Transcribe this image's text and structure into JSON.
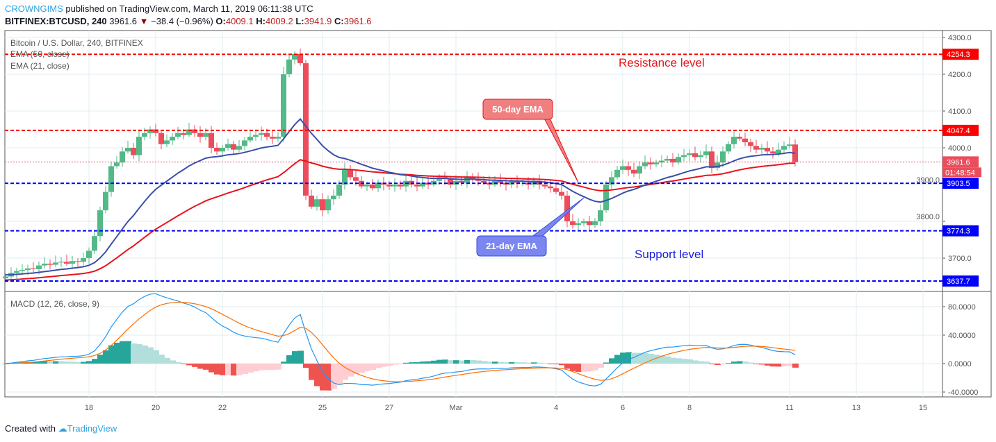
{
  "header": {
    "author": "CROWNGIMS",
    "published": "published on TradingView.com, March 11, 2019 06:11:38 UTC",
    "symbol": "BITFINEX:BTCUSD, 240",
    "last": "3961.6",
    "change": "−38.4 (−0.96%)",
    "o_label": "O:",
    "o": "4009.1",
    "h_label": "H:",
    "h": "4009.2",
    "l_label": "L:",
    "l": "3941.9",
    "c_label": "C:",
    "c": "3961.6"
  },
  "footer": {
    "created": "Created with",
    "brand": "TradingView"
  },
  "colors": {
    "up": "#53b987",
    "down": "#eb4d5c",
    "ema50": "#e8141b",
    "ema21": "#3a4fa8",
    "macd": "#2196f3",
    "signal": "#ff6d00",
    "resistance": "#ff0000",
    "support": "#0000ff"
  },
  "chart_data": {
    "type": "candlestick",
    "title": "Bitcoin / U.S. Dollar, 240, BITFINEX",
    "legend": [
      "EMA (50, close)",
      "EMA (21, close)"
    ],
    "macd_label": "MACD (12, 26, close, 9)",
    "y_ticks": [
      "4300.0",
      "4200.0",
      "4100.0",
      "4000.0",
      "3900.0",
      "3800.0",
      "3700.0"
    ],
    "y_tick_values": [
      4300,
      4200,
      4100,
      4000,
      3900,
      3800,
      3700
    ],
    "ylim": [
      3620,
      4320
    ],
    "macd_ticks": [
      "80.0000",
      "40.0000",
      "0.0000",
      "-40.0000"
    ],
    "macd_tick_values": [
      80,
      40,
      0,
      -40
    ],
    "macd_ylim": [
      -48,
      100
    ],
    "x_ticks": [
      {
        "label": "18",
        "day": 18
      },
      {
        "label": "20",
        "day": 20
      },
      {
        "label": "22",
        "day": 22
      },
      {
        "label": "25",
        "day": 25
      },
      {
        "label": "27",
        "day": 27
      },
      {
        "label": "Mar",
        "day": 29
      },
      {
        "label": "4",
        "day": 32
      },
      {
        "label": "6",
        "day": 34
      },
      {
        "label": "8",
        "day": 36
      },
      {
        "label": "11",
        "day": 39
      },
      {
        "label": "13",
        "day": 41
      },
      {
        "label": "15",
        "day": 43
      }
    ],
    "start_day": 15.5,
    "candles_per_day": 6,
    "closes": [
      3650,
      3660,
      3665,
      3668,
      3672,
      3670,
      3680,
      3685,
      3682,
      3688,
      3690,
      3685,
      3692,
      3690,
      3700,
      3720,
      3760,
      3830,
      3880,
      3950,
      3960,
      3990,
      4000,
      3980,
      4030,
      4040,
      4050,
      4040,
      4010,
      4020,
      4030,
      4040,
      4035,
      4050,
      4040,
      4030,
      4040,
      4000,
      3990,
      4000,
      4010,
      3995,
      4005,
      4020,
      4030,
      4035,
      4040,
      4030,
      4025,
      4030,
      4200,
      4240,
      4255,
      4230,
      3870,
      3840,
      3860,
      3830,
      3860,
      3870,
      3900,
      3940,
      3920,
      3910,
      3895,
      3900,
      3890,
      3905,
      3900,
      3895,
      3900,
      3895,
      3910,
      3900,
      3895,
      3905,
      3900,
      3910,
      3920,
      3915,
      3900,
      3910,
      3905,
      3920,
      3915,
      3910,
      3905,
      3900,
      3910,
      3905,
      3900,
      3910,
      3905,
      3905,
      3900,
      3910,
      3900,
      3895,
      3890,
      3880,
      3870,
      3800,
      3790,
      3795,
      3800,
      3790,
      3800,
      3830,
      3900,
      3920,
      3940,
      3950,
      3940,
      3930,
      3950,
      3960,
      3955,
      3960,
      3965,
      3970,
      3960,
      3975,
      3980,
      3985,
      3975,
      3980,
      3990,
      3945,
      3960,
      3990,
      4010,
      4030,
      4025,
      4015,
      4005,
      3995,
      4000,
      3990,
      3985,
      3995,
      4005,
      4009,
      3961.6
    ],
    "levels": [
      {
        "value": 4254.3,
        "label": "4254.3",
        "kind": "resistance"
      },
      {
        "value": 4047.4,
        "label": "4047.4",
        "kind": "resistance"
      },
      {
        "value": 3903.5,
        "label": "3903.5",
        "kind": "support"
      },
      {
        "value": 3774.3,
        "label": "3774.3",
        "kind": "support"
      },
      {
        "value": 3637.7,
        "label": "3637.7",
        "kind": "support"
      }
    ],
    "last_price": {
      "value": 3961.6,
      "label": "3961.6",
      "countdown": "01:48:54"
    },
    "annotations": {
      "resistance": "Resistance level",
      "support": "Support level",
      "ema50": "50-day EMA",
      "ema21": "21-day EMA"
    }
  }
}
